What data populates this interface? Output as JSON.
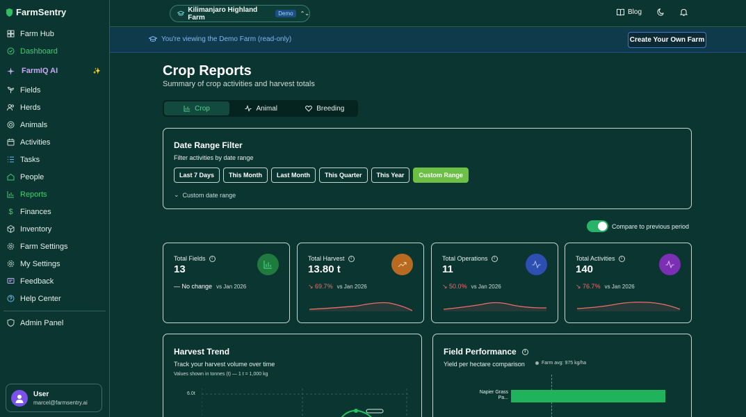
{
  "app": {
    "brand": "FarmSentry"
  },
  "sidebar": {
    "items": [
      {
        "label": "Farm Hub",
        "icon": "grid-icon"
      },
      {
        "label": "Dashboard",
        "icon": "dashboard-icon",
        "active": true
      },
      {
        "label": "FarmIQ AI",
        "icon": "sparkles-icon",
        "badge": "✨"
      },
      {
        "label": "Fields",
        "icon": "sprout-icon"
      },
      {
        "label": "Herds",
        "icon": "users-icon"
      },
      {
        "label": "Animals",
        "icon": "paw-icon"
      },
      {
        "label": "Activities",
        "icon": "calendar-icon"
      },
      {
        "label": "Tasks",
        "icon": "list-icon"
      },
      {
        "label": "People",
        "icon": "people-icon"
      },
      {
        "label": "Reports",
        "icon": "chart-icon",
        "active": true
      },
      {
        "label": "Finances",
        "icon": "dollar-icon"
      },
      {
        "label": "Inventory",
        "icon": "box-icon"
      },
      {
        "label": "Farm Settings",
        "icon": "gear-icon"
      },
      {
        "label": "My Settings",
        "icon": "gear-icon"
      },
      {
        "label": "Feedback",
        "icon": "message-icon"
      },
      {
        "label": "Help Center",
        "icon": "help-icon"
      },
      {
        "label": "Admin Panel",
        "icon": "shield-icon"
      }
    ],
    "user": {
      "name": "User",
      "email": "marcel@farmsentry.ai"
    }
  },
  "topbar": {
    "farm_name": "Kilimanjaro Highland Farm",
    "farm_badge": "Demo",
    "blog": "Blog"
  },
  "banner": {
    "message": "You're viewing the Demo Farm (read-only)",
    "cta": "Create Your Own Farm"
  },
  "page": {
    "title": "Crop Reports",
    "subtitle": "Summary of crop activities and harvest totals",
    "tabs": [
      {
        "label": "Crop",
        "active": true
      },
      {
        "label": "Animal"
      },
      {
        "label": "Breeding"
      }
    ]
  },
  "filter": {
    "title": "Date Range Filter",
    "subtitle": "Filter activities by date range",
    "ranges": [
      "Last 7 Days",
      "This Month",
      "Last Month",
      "This Quarter",
      "This Year",
      "Custom Range"
    ],
    "active_range": "Custom Range",
    "custom_toggle": "Custom date range"
  },
  "compare": {
    "label": "Compare to previous period",
    "on": true
  },
  "stats": [
    {
      "label": "Total Fields",
      "value": "13",
      "change": "No change",
      "vs": "vs Jan 2026",
      "color": "#1f7a3d",
      "icon": "bar-chart-icon"
    },
    {
      "label": "Total Harvest",
      "value": "13.80 t",
      "change": "69.7%",
      "vs": "vs Jan 2026",
      "color": "#b86a21",
      "icon": "trending-up-icon"
    },
    {
      "label": "Total Operations",
      "value": "11",
      "change": "50.0%",
      "vs": "vs Jan 2026",
      "color": "#2d4fb0",
      "icon": "activity-icon"
    },
    {
      "label": "Total Activities",
      "value": "140",
      "change": "76.7%",
      "vs": "vs Jan 2026",
      "color": "#7b2fb3",
      "icon": "pulse-icon"
    }
  ],
  "trend": {
    "title": "Harvest Trend",
    "subtitle": "Track your harvest volume over time",
    "note": "Values shown in tonnes (t) — 1 t = 1,000 kg",
    "ytick": "6.0t"
  },
  "performance": {
    "title": "Field Performance",
    "subtitle": "Yield per hectare comparison",
    "avg": "Farm avg: 975 kg/ha",
    "bar_label_1": "Napier Grass",
    "bar_label_2": "Pa..."
  }
}
